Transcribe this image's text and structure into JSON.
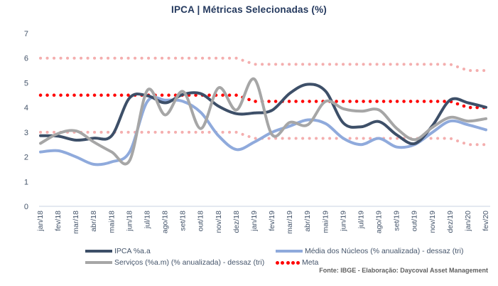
{
  "title": "IPCA | Métricas Selecionadas (%)",
  "source_note": "Fonte: IBGE - Elaboração: Daycoval Asset Management",
  "colors": {
    "ipca_navy": "#3d4f68",
    "nucleos_blue": "#8faadc",
    "servicos_gray": "#a6a6a6",
    "meta_red": "#ff0000",
    "band_pink": "#f4aeae",
    "axis_text": "#44546a",
    "title_text": "#24395e",
    "axis_line": "#c9d3e0"
  },
  "y_axis": {
    "ticks": [
      7,
      6,
      5,
      4,
      3,
      2,
      1,
      0
    ]
  },
  "chart_data": {
    "type": "line",
    "title": "IPCA | Métricas Selecionadas (%)",
    "xlabel": "",
    "ylabel": "",
    "ylim": [
      0,
      7
    ],
    "grid": false,
    "legend_position": "bottom",
    "categories": [
      "jan/18",
      "fev/18",
      "mar/18",
      "abr/18",
      "mai/18",
      "jun/18",
      "jul/18",
      "ago/18",
      "set/18",
      "out/18",
      "nov/18",
      "dez/18",
      "jan/19",
      "fev/19",
      "mar/19",
      "abr/19",
      "mai/19",
      "jun/19",
      "jul/19",
      "ago/19",
      "set/19",
      "out/19",
      "nov/19",
      "dez/19",
      "jan/20",
      "fev/20"
    ],
    "series": [
      {
        "key": "ipca",
        "name": "IPCA %a.a",
        "color": "#3d4f68",
        "style": "solid",
        "smooth": true,
        "values": [
          2.86,
          2.84,
          2.68,
          2.76,
          2.86,
          4.39,
          4.48,
          4.19,
          4.53,
          4.56,
          4.05,
          3.75,
          3.78,
          3.89,
          4.58,
          4.94,
          4.66,
          3.37,
          3.22,
          3.43,
          2.89,
          2.54,
          3.27,
          4.31,
          4.19,
          4.01
        ]
      },
      {
        "key": "nucleos",
        "name": "Média dos Núcleos (% anualizada) - dessaz (tri)",
        "color": "#8faadc",
        "style": "solid",
        "smooth": true,
        "values": [
          2.2,
          2.25,
          2.0,
          1.7,
          1.8,
          2.2,
          4.25,
          4.3,
          4.25,
          3.8,
          2.85,
          2.3,
          2.6,
          3.0,
          3.25,
          3.5,
          3.35,
          2.75,
          2.5,
          2.75,
          2.4,
          2.5,
          3.0,
          3.45,
          3.3,
          3.1
        ]
      },
      {
        "key": "servicos",
        "name": "Serviços (%a.m) (% anualizada) - dessaz (tri)",
        "color": "#a6a6a6",
        "style": "solid",
        "smooth": true,
        "values": [
          2.55,
          2.95,
          3.05,
          2.6,
          2.2,
          1.85,
          4.7,
          3.7,
          4.65,
          3.15,
          4.8,
          3.9,
          5.15,
          2.9,
          3.4,
          3.3,
          4.25,
          3.95,
          3.85,
          3.9,
          3.15,
          2.7,
          3.2,
          3.6,
          3.45,
          3.55
        ]
      },
      {
        "key": "meta",
        "name": "Meta",
        "color": "#ff0000",
        "style": "dotted",
        "smooth": false,
        "values": [
          4.5,
          4.5,
          4.5,
          4.5,
          4.5,
          4.5,
          4.5,
          4.5,
          4.5,
          4.5,
          4.5,
          4.5,
          4.25,
          4.25,
          4.25,
          4.25,
          4.25,
          4.25,
          4.25,
          4.25,
          4.25,
          4.25,
          4.25,
          4.25,
          4.0,
          4.0
        ]
      },
      {
        "key": "banda_superior",
        "name": "Banda superior da meta",
        "color": "#f4aeae",
        "style": "dotted",
        "smooth": false,
        "values": [
          6.0,
          6.0,
          6.0,
          6.0,
          6.0,
          6.0,
          6.0,
          6.0,
          6.0,
          6.0,
          6.0,
          6.0,
          5.75,
          5.75,
          5.75,
          5.75,
          5.75,
          5.75,
          5.75,
          5.75,
          5.75,
          5.75,
          5.75,
          5.75,
          5.5,
          5.5
        ]
      },
      {
        "key": "banda_inferior",
        "name": "Banda inferior da meta",
        "color": "#f4aeae",
        "style": "dotted",
        "smooth": false,
        "values": [
          3.0,
          3.0,
          3.0,
          3.0,
          3.0,
          3.0,
          3.0,
          3.0,
          3.0,
          3.0,
          3.0,
          3.0,
          2.75,
          2.75,
          2.75,
          2.75,
          2.75,
          2.75,
          2.75,
          2.75,
          2.75,
          2.75,
          2.75,
          2.75,
          2.5,
          2.5
        ]
      }
    ]
  },
  "legend": {
    "items": [
      {
        "series": "ipca",
        "label": "IPCA %a.a"
      },
      {
        "series": "nucleos",
        "label": "Média dos Núcleos (% anualizada) - dessaz (tri)"
      },
      {
        "series": "servicos",
        "label": "Serviços (%a.m) (% anualizada) - dessaz (tri)"
      },
      {
        "series": "meta",
        "label": "Meta"
      }
    ]
  }
}
